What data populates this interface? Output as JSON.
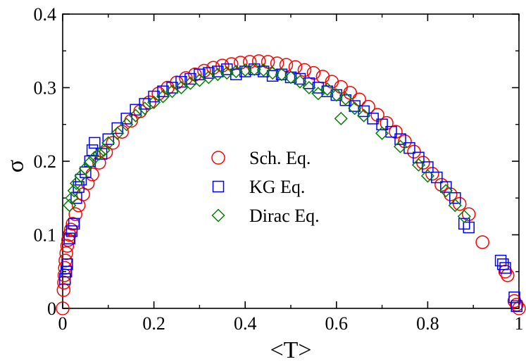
{
  "chart_data": {
    "type": "scatter",
    "title": "",
    "xlabel": "<T>",
    "ylabel": "σ",
    "xlim": [
      0,
      1
    ],
    "ylim": [
      0,
      0.4
    ],
    "x_ticks": [
      0,
      0.2,
      0.4,
      0.6,
      0.8,
      1
    ],
    "y_ticks": [
      0,
      0.1,
      0.2,
      0.3,
      0.4
    ],
    "x_tick_labels": [
      "0",
      "0.2",
      "0.4",
      "0.6",
      "0.8",
      "1"
    ],
    "y_tick_labels": [
      "0",
      "0.1",
      "0.2",
      "0.3",
      "0.4"
    ],
    "grid": false,
    "legend": "center",
    "series": [
      {
        "name": "Sch. Eq.",
        "marker": "circle",
        "color": "#ff0000",
        "points": [
          [
            0.0,
            0.0
          ],
          [
            0.002,
            0.025
          ],
          [
            0.003,
            0.035
          ],
          [
            0.004,
            0.045
          ],
          [
            0.005,
            0.055
          ],
          [
            0.006,
            0.065
          ],
          [
            0.008,
            0.075
          ],
          [
            0.01,
            0.085
          ],
          [
            0.012,
            0.093
          ],
          [
            0.015,
            0.1
          ],
          [
            0.018,
            0.107
          ],
          [
            0.022,
            0.115
          ],
          [
            0.028,
            0.128
          ],
          [
            0.035,
            0.14
          ],
          [
            0.045,
            0.155
          ],
          [
            0.055,
            0.17
          ],
          [
            0.065,
            0.182
          ],
          [
            0.08,
            0.198
          ],
          [
            0.095,
            0.212
          ],
          [
            0.11,
            0.225
          ],
          [
            0.13,
            0.24
          ],
          [
            0.15,
            0.255
          ],
          [
            0.17,
            0.268
          ],
          [
            0.19,
            0.28
          ],
          [
            0.21,
            0.292
          ],
          [
            0.23,
            0.3
          ],
          [
            0.25,
            0.307
          ],
          [
            0.27,
            0.313
          ],
          [
            0.29,
            0.318
          ],
          [
            0.31,
            0.323
          ],
          [
            0.33,
            0.327
          ],
          [
            0.35,
            0.33
          ],
          [
            0.37,
            0.332
          ],
          [
            0.39,
            0.334
          ],
          [
            0.41,
            0.335
          ],
          [
            0.43,
            0.336
          ],
          [
            0.45,
            0.335
          ],
          [
            0.47,
            0.333
          ],
          [
            0.49,
            0.331
          ],
          [
            0.51,
            0.328
          ],
          [
            0.53,
            0.324
          ],
          [
            0.55,
            0.32
          ],
          [
            0.57,
            0.315
          ],
          [
            0.59,
            0.308
          ],
          [
            0.61,
            0.301
          ],
          [
            0.63,
            0.293
          ],
          [
            0.65,
            0.284
          ],
          [
            0.67,
            0.274
          ],
          [
            0.69,
            0.263
          ],
          [
            0.71,
            0.252
          ],
          [
            0.73,
            0.24
          ],
          [
            0.75,
            0.227
          ],
          [
            0.77,
            0.213
          ],
          [
            0.79,
            0.198
          ],
          [
            0.81,
            0.183
          ],
          [
            0.83,
            0.168
          ],
          [
            0.85,
            0.155
          ],
          [
            0.87,
            0.142
          ],
          [
            0.89,
            0.128
          ],
          [
            0.92,
            0.09
          ],
          [
            0.97,
            0.05
          ],
          [
            0.975,
            0.045
          ],
          [
            0.99,
            0.01
          ],
          [
            0.995,
            0.005
          ],
          [
            1.0,
            0.0
          ]
        ]
      },
      {
        "name": "KG Eq.",
        "marker": "square",
        "color": "#0000ff",
        "points": [
          [
            0.005,
            0.04
          ],
          [
            0.008,
            0.05
          ],
          [
            0.01,
            0.06
          ],
          [
            0.015,
            0.095
          ],
          [
            0.02,
            0.105
          ],
          [
            0.025,
            0.115
          ],
          [
            0.03,
            0.15
          ],
          [
            0.035,
            0.165
          ],
          [
            0.04,
            0.175
          ],
          [
            0.05,
            0.185
          ],
          [
            0.06,
            0.2
          ],
          [
            0.065,
            0.215
          ],
          [
            0.07,
            0.225
          ],
          [
            0.085,
            0.21
          ],
          [
            0.1,
            0.23
          ],
          [
            0.12,
            0.245
          ],
          [
            0.14,
            0.258
          ],
          [
            0.16,
            0.27
          ],
          [
            0.18,
            0.278
          ],
          [
            0.2,
            0.288
          ],
          [
            0.22,
            0.295
          ],
          [
            0.24,
            0.3
          ],
          [
            0.26,
            0.308
          ],
          [
            0.28,
            0.312
          ],
          [
            0.3,
            0.318
          ],
          [
            0.32,
            0.32
          ],
          [
            0.34,
            0.322
          ],
          [
            0.36,
            0.325
          ],
          [
            0.38,
            0.318
          ],
          [
            0.4,
            0.322
          ],
          [
            0.42,
            0.325
          ],
          [
            0.44,
            0.322
          ],
          [
            0.46,
            0.316
          ],
          [
            0.48,
            0.318
          ],
          [
            0.5,
            0.314
          ],
          [
            0.52,
            0.312
          ],
          [
            0.54,
            0.306
          ],
          [
            0.56,
            0.3
          ],
          [
            0.58,
            0.295
          ],
          [
            0.6,
            0.29
          ],
          [
            0.62,
            0.283
          ],
          [
            0.64,
            0.275
          ],
          [
            0.66,
            0.268
          ],
          [
            0.68,
            0.258
          ],
          [
            0.7,
            0.25
          ],
          [
            0.72,
            0.24
          ],
          [
            0.74,
            0.23
          ],
          [
            0.76,
            0.218
          ],
          [
            0.78,
            0.205
          ],
          [
            0.8,
            0.192
          ],
          [
            0.82,
            0.178
          ],
          [
            0.84,
            0.165
          ],
          [
            0.86,
            0.15
          ],
          [
            0.88,
            0.115
          ],
          [
            0.89,
            0.11
          ],
          [
            0.96,
            0.065
          ],
          [
            0.965,
            0.06
          ],
          [
            0.97,
            0.055
          ],
          [
            0.99,
            0.015
          ],
          [
            0.995,
            0.003
          ]
        ]
      },
      {
        "name": "Dirac Eq.",
        "marker": "diamond",
        "color": "#008000",
        "points": [
          [
            0.015,
            0.14
          ],
          [
            0.02,
            0.15
          ],
          [
            0.025,
            0.16
          ],
          [
            0.03,
            0.17
          ],
          [
            0.04,
            0.18
          ],
          [
            0.05,
            0.19
          ],
          [
            0.06,
            0.198
          ],
          [
            0.07,
            0.205
          ],
          [
            0.08,
            0.21
          ],
          [
            0.09,
            0.215
          ],
          [
            0.1,
            0.225
          ],
          [
            0.12,
            0.238
          ],
          [
            0.14,
            0.25
          ],
          [
            0.16,
            0.262
          ],
          [
            0.18,
            0.272
          ],
          [
            0.2,
            0.28
          ],
          [
            0.22,
            0.288
          ],
          [
            0.24,
            0.295
          ],
          [
            0.26,
            0.3
          ],
          [
            0.28,
            0.306
          ],
          [
            0.3,
            0.31
          ],
          [
            0.32,
            0.314
          ],
          [
            0.34,
            0.318
          ],
          [
            0.36,
            0.32
          ],
          [
            0.38,
            0.322
          ],
          [
            0.4,
            0.324
          ],
          [
            0.42,
            0.325
          ],
          [
            0.44,
            0.324
          ],
          [
            0.46,
            0.32
          ],
          [
            0.48,
            0.318
          ],
          [
            0.5,
            0.314
          ],
          [
            0.52,
            0.308
          ],
          [
            0.54,
            0.3
          ],
          [
            0.56,
            0.292
          ],
          [
            0.58,
            0.298
          ],
          [
            0.6,
            0.29
          ],
          [
            0.61,
            0.258
          ],
          [
            0.62,
            0.285
          ],
          [
            0.64,
            0.272
          ],
          [
            0.66,
            0.262
          ],
          [
            0.7,
            0.238
          ],
          [
            0.74,
            0.22
          ],
          [
            0.78,
            0.195
          ],
          [
            0.8,
            0.18
          ],
          [
            0.84,
            0.16
          ],
          [
            0.86,
            0.14
          ],
          [
            0.88,
            0.125
          ]
        ]
      }
    ]
  }
}
